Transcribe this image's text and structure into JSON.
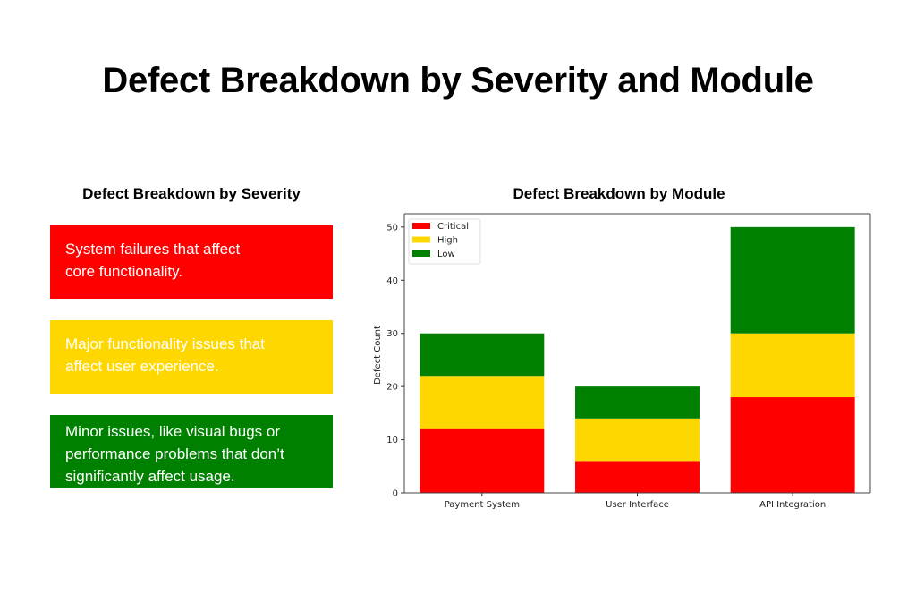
{
  "page": {
    "title": "Defect Breakdown by Severity and Module"
  },
  "severity_panel": {
    "title": "Defect Breakdown by Severity",
    "cards": [
      {
        "level": "Critical",
        "color": "#ff0000",
        "lines": [
          "System failures that affect",
          "core functionality."
        ]
      },
      {
        "level": "High",
        "color": "#ffd700",
        "lines": [
          "Major functionality issues that",
          "affect user experience."
        ]
      },
      {
        "level": "Low",
        "color": "#008000",
        "lines": [
          "Minor issues, like visual bugs or",
          "performance problems that don’t",
          "significantly affect usage."
        ]
      }
    ]
  },
  "chart_data": {
    "type": "bar",
    "stacked": true,
    "title": "Defect Breakdown by Module",
    "xlabel": "",
    "ylabel": "Defect Count",
    "categories": [
      "Payment System",
      "User Interface",
      "API Integration"
    ],
    "series": [
      {
        "name": "Critical",
        "color": "#ff0000",
        "values": [
          12,
          6,
          18
        ]
      },
      {
        "name": "High",
        "color": "#ffd700",
        "values": [
          10,
          8,
          12
        ]
      },
      {
        "name": "Low",
        "color": "#008000",
        "values": [
          8,
          6,
          20
        ]
      }
    ],
    "ylim": [
      0,
      52.5
    ],
    "yticks": [
      0,
      10,
      20,
      30,
      40,
      50
    ],
    "grid": false,
    "legend": "top-left"
  }
}
